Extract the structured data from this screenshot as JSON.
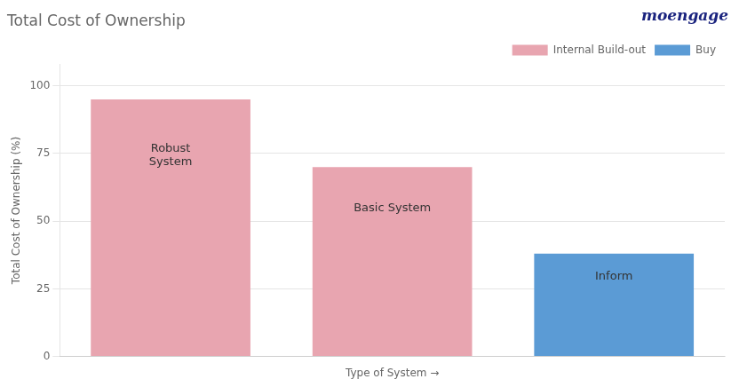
{
  "chart_data": {
    "type": "bar",
    "title": "Total Cost of Ownership",
    "categories": [
      "Robust\nSystem",
      "Basic System",
      "Inform"
    ],
    "series": [
      {
        "name": "Internal Build-out",
        "color": "#e8a5b0",
        "values": [
          95,
          70,
          null
        ]
      },
      {
        "name": "Buy",
        "color": "#5b9bd5",
        "values": [
          null,
          null,
          38
        ]
      }
    ],
    "x_label": "Type of System →",
    "y_label": "Total Cost of Ownership (%)",
    "ylim": [
      0,
      108
    ],
    "yticks": [
      0,
      25,
      50,
      75,
      100
    ],
    "grid": true,
    "legend": "top",
    "tick_labels": "y",
    "annotations": [
      {
        "text": "moengage",
        "color": "#1a237e"
      }
    ]
  }
}
